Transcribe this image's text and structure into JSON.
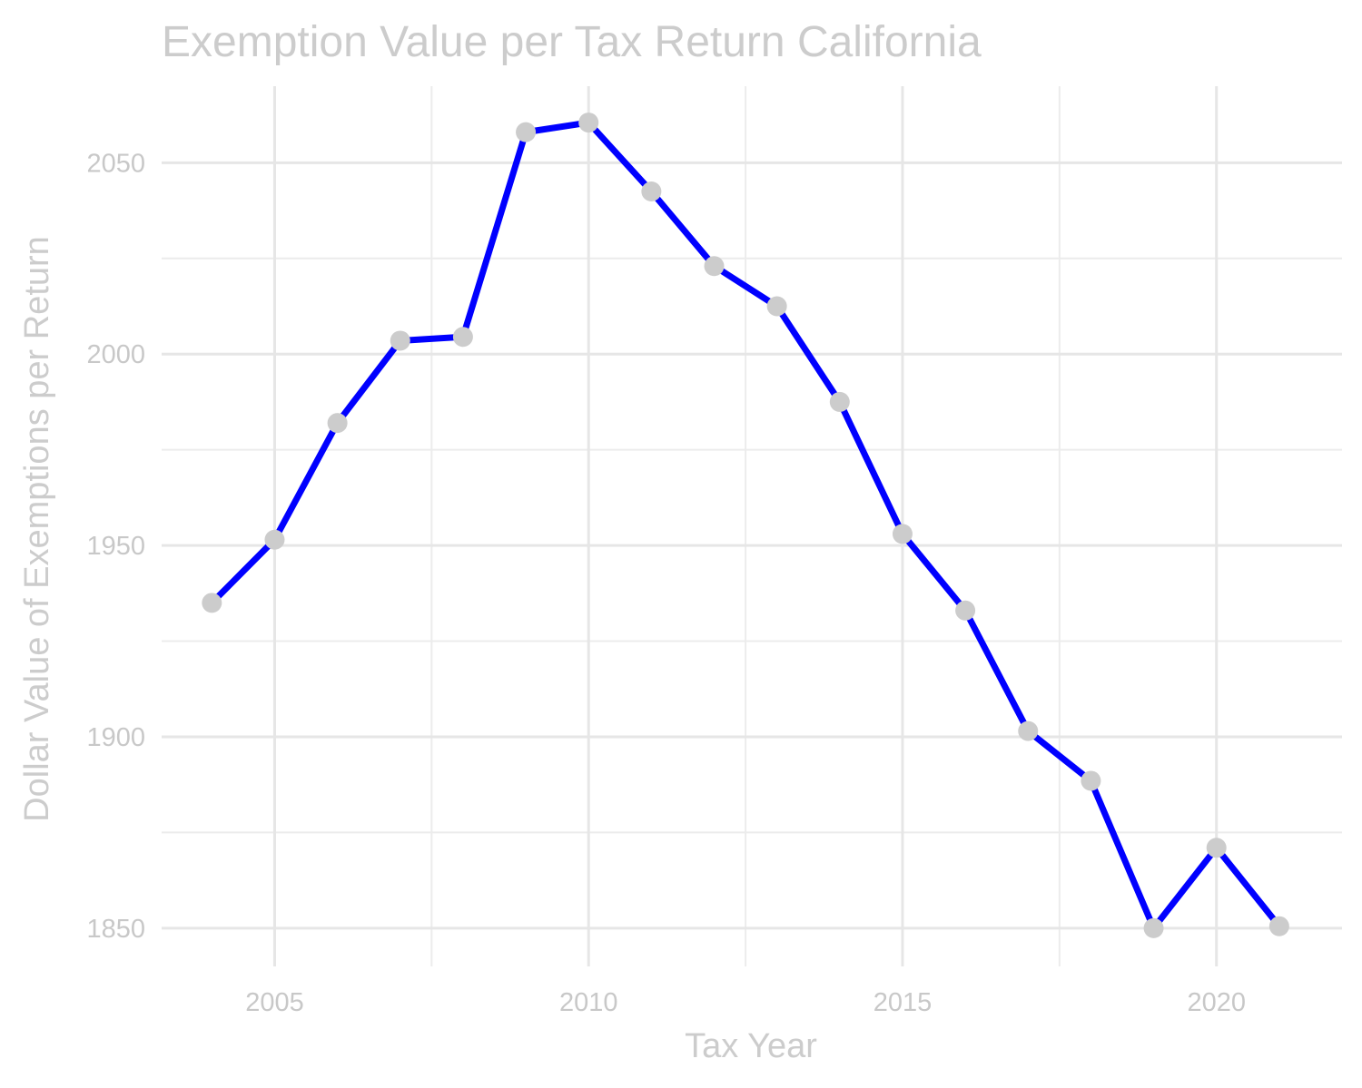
{
  "chart_data": {
    "type": "line",
    "title": "Exemption Value per Tax Return California",
    "xlabel": "Tax Year",
    "ylabel": "Dollar Value of Exemptions per Return",
    "xlim": [
      2003.2,
      2022
    ],
    "ylim": [
      1840,
      2070
    ],
    "x_ticks": [
      2005,
      2010,
      2015,
      2020
    ],
    "x_minor_ticks": [
      2007.5,
      2012.5,
      2017.5
    ],
    "y_ticks": [
      1850,
      1900,
      1950,
      2000,
      2050
    ],
    "y_minor_ticks": [
      1875,
      1925,
      1975,
      2025
    ],
    "grid": true,
    "legend": "none",
    "series": [
      {
        "line_color": "#0000ff",
        "point_color": "#cccccc",
        "x": [
          2004,
          2005,
          2006,
          2007,
          2008,
          2009,
          2010,
          2011,
          2012,
          2013,
          2014,
          2015,
          2016,
          2017,
          2018,
          2019,
          2020,
          2021
        ],
        "y": [
          1935,
          1951.5,
          1982,
          2003.5,
          2004.5,
          2058,
          2060.5,
          2042.5,
          2023,
          2012.5,
          1987.5,
          1953,
          1933,
          1901.5,
          1888.5,
          1850,
          1871,
          1850.5
        ]
      }
    ]
  }
}
